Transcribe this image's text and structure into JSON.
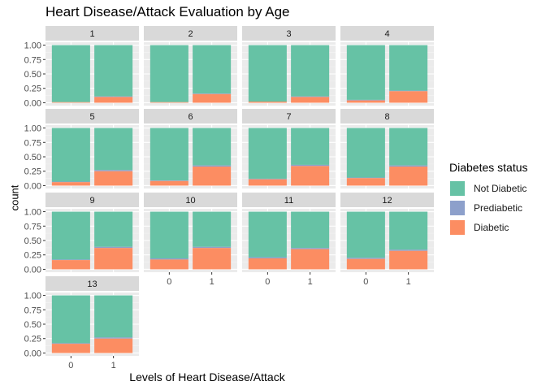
{
  "chart_data": {
    "type": "bar",
    "title": "Heart Disease/Attack Evaluation by Age",
    "xlabel": "Levels of Heart Disease/Attack",
    "ylabel": "count",
    "ylim": [
      0,
      1
    ],
    "yticks": [
      "0.00",
      "0.25",
      "0.50",
      "0.75",
      "1.00"
    ],
    "categories": [
      "0",
      "1"
    ],
    "stacked": true,
    "position": "fill",
    "legend": {
      "title": "Diabetes status",
      "placement": "right",
      "entries": [
        {
          "name": "Not Diabetic",
          "color": "#66c2a5"
        },
        {
          "name": "Prediabetic",
          "color": "#8da0cb"
        },
        {
          "name": "Diabetic",
          "color": "#fc8d62"
        }
      ]
    },
    "facets": [
      {
        "label": "1",
        "bars": [
          {
            "x": "0",
            "diabetic": 0.01,
            "prediabetic": 0.0
          },
          {
            "x": "1",
            "diabetic": 0.1,
            "prediabetic": 0.01
          }
        ]
      },
      {
        "label": "2",
        "bars": [
          {
            "x": "0",
            "diabetic": 0.01,
            "prediabetic": 0.0
          },
          {
            "x": "1",
            "diabetic": 0.15,
            "prediabetic": 0.01
          }
        ]
      },
      {
        "label": "3",
        "bars": [
          {
            "x": "0",
            "diabetic": 0.02,
            "prediabetic": 0.0
          },
          {
            "x": "1",
            "diabetic": 0.1,
            "prediabetic": 0.01
          }
        ]
      },
      {
        "label": "4",
        "bars": [
          {
            "x": "0",
            "diabetic": 0.04,
            "prediabetic": 0.01
          },
          {
            "x": "1",
            "diabetic": 0.2,
            "prediabetic": 0.01
          }
        ]
      },
      {
        "label": "5",
        "bars": [
          {
            "x": "0",
            "diabetic": 0.06,
            "prediabetic": 0.01
          },
          {
            "x": "1",
            "diabetic": 0.25,
            "prediabetic": 0.02
          }
        ]
      },
      {
        "label": "6",
        "bars": [
          {
            "x": "0",
            "diabetic": 0.08,
            "prediabetic": 0.01
          },
          {
            "x": "1",
            "diabetic": 0.33,
            "prediabetic": 0.02
          }
        ]
      },
      {
        "label": "7",
        "bars": [
          {
            "x": "0",
            "diabetic": 0.11,
            "prediabetic": 0.01
          },
          {
            "x": "1",
            "diabetic": 0.34,
            "prediabetic": 0.02
          }
        ]
      },
      {
        "label": "8",
        "bars": [
          {
            "x": "0",
            "diabetic": 0.13,
            "prediabetic": 0.01
          },
          {
            "x": "1",
            "diabetic": 0.33,
            "prediabetic": 0.02
          }
        ]
      },
      {
        "label": "9",
        "bars": [
          {
            "x": "0",
            "diabetic": 0.16,
            "prediabetic": 0.01
          },
          {
            "x": "1",
            "diabetic": 0.37,
            "prediabetic": 0.02
          }
        ]
      },
      {
        "label": "10",
        "bars": [
          {
            "x": "0",
            "diabetic": 0.17,
            "prediabetic": 0.02
          },
          {
            "x": "1",
            "diabetic": 0.37,
            "prediabetic": 0.02
          }
        ]
      },
      {
        "label": "11",
        "bars": [
          {
            "x": "0",
            "diabetic": 0.19,
            "prediabetic": 0.02
          },
          {
            "x": "1",
            "diabetic": 0.35,
            "prediabetic": 0.02
          }
        ]
      },
      {
        "label": "12",
        "bars": [
          {
            "x": "0",
            "diabetic": 0.18,
            "prediabetic": 0.02
          },
          {
            "x": "1",
            "diabetic": 0.32,
            "prediabetic": 0.02
          }
        ]
      },
      {
        "label": "13",
        "bars": [
          {
            "x": "0",
            "diabetic": 0.16,
            "prediabetic": 0.01
          },
          {
            "x": "1",
            "diabetic": 0.25,
            "prediabetic": 0.02
          }
        ]
      }
    ],
    "grid": true
  }
}
